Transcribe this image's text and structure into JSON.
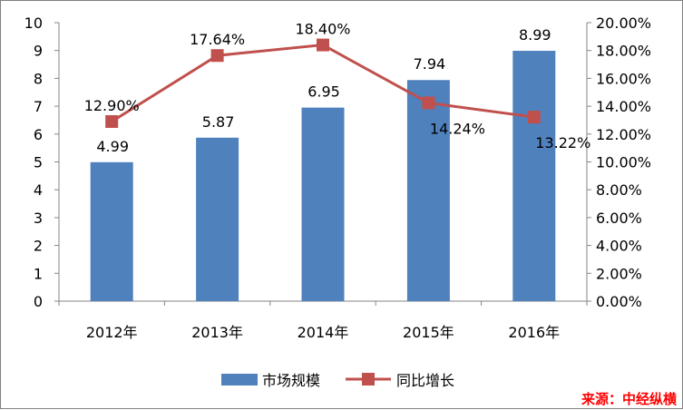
{
  "chart_data": {
    "type": "bar",
    "categories": [
      "2012年",
      "2013年",
      "2014年",
      "2015年",
      "2016年"
    ],
    "series": [
      {
        "name": "市场规模",
        "type": "bar",
        "axis": "left",
        "values": [
          4.99,
          5.87,
          6.95,
          7.94,
          8.99
        ],
        "labels": [
          "4.99",
          "5.87",
          "6.95",
          "7.94",
          "8.99"
        ],
        "color": "#4f81bd"
      },
      {
        "name": "同比增长",
        "type": "line",
        "axis": "right",
        "values": [
          12.9,
          17.64,
          18.4,
          14.24,
          13.22
        ],
        "labels": [
          "12.90%",
          "17.64%",
          "18.40%",
          "14.24%",
          "13.22%"
        ],
        "color": "#c0504d"
      }
    ],
    "y_left": {
      "ylim": [
        0,
        10
      ],
      "ticks": [
        "0",
        "1",
        "2",
        "3",
        "4",
        "5",
        "6",
        "7",
        "8",
        "9",
        "10"
      ]
    },
    "y_right": {
      "ylim": [
        0,
        20
      ],
      "ticks": [
        "0.00%",
        "2.00%",
        "4.00%",
        "6.00%",
        "8.00%",
        "10.00%",
        "12.00%",
        "14.00%",
        "16.00%",
        "18.00%",
        "20.00%"
      ]
    },
    "grid": false,
    "legend": "bottom"
  },
  "source": "来源：中经纵横"
}
